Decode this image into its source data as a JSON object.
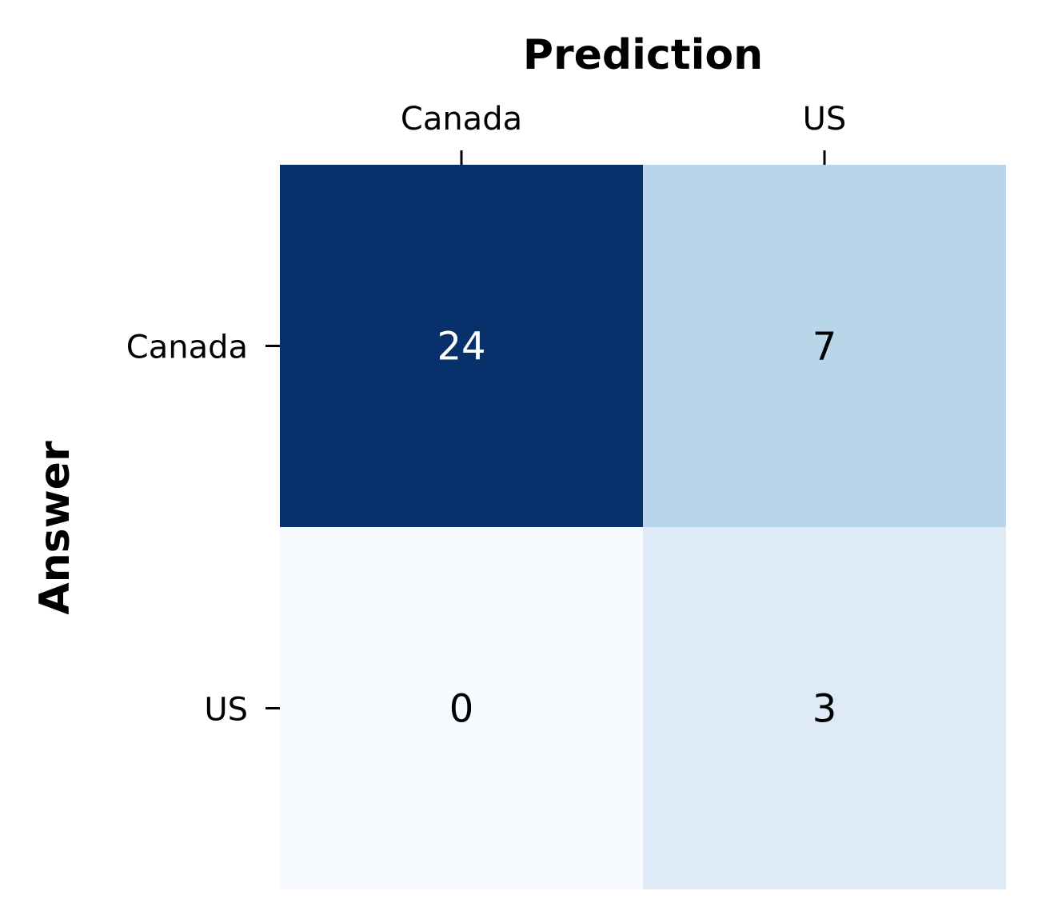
{
  "chart_data": {
    "type": "heatmap",
    "title": "",
    "xlabel": "Prediction",
    "ylabel": "Answer",
    "x_categories": [
      "Canada",
      "US"
    ],
    "y_categories": [
      "Canada",
      "US"
    ],
    "values": [
      [
        24,
        7
      ],
      [
        0,
        3
      ]
    ],
    "colormap": "Blues",
    "color_range": [
      0,
      24
    ],
    "x_axis_position": "top",
    "colorbar": false,
    "colors": {
      "low": "#f7fbff",
      "high": "#08306b",
      "text_dark": "#000000",
      "text_light": "#ffffff"
    }
  }
}
